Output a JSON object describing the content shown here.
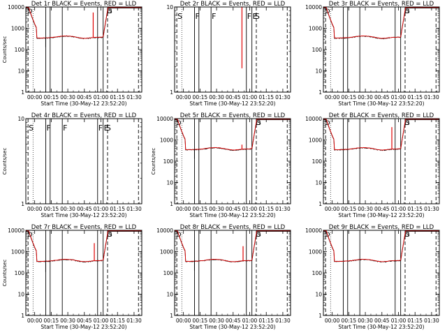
{
  "chart_data": [
    {
      "type": "line",
      "id": "det1",
      "title": "Det 1r  BLACK = Events, RED = LLD",
      "ylabel": "Counts/sec",
      "xlabel": "Start Time (30-May-12 23:52:20)",
      "yscale": "log",
      "ylim": [
        1,
        10000
      ],
      "yticks": [
        "1",
        "10",
        "100",
        "1000",
        "10000"
      ],
      "xlim_min": [
        -8,
        97
      ],
      "xticks": [
        "00:00",
        "00:15",
        "00:30",
        "00:45",
        "01:00",
        "01:15",
        "01:30"
      ],
      "has_data": true,
      "spike_min": 53,
      "spike_red": 5500,
      "dip_min": 10,
      "dip_black": 130,
      "series": [
        {
          "name": "BLACK = Events",
          "color": "#000000"
        },
        {
          "name": "RED = LLD",
          "color": "#e00000"
        }
      ],
      "solid_lines": [
        10,
        14,
        25,
        57,
        62
      ],
      "dashed_lines": [
        -6,
        66,
        94
      ],
      "markers": [
        {
          "label": "D",
          "at": -7
        },
        {
          "label": "D",
          "at": 65
        },
        {
          "label": "S",
          "at": 66
        }
      ]
    },
    {
      "type": "line",
      "id": "det2",
      "title": "Det 2r  BLACK = Events, RED = LLD",
      "ylabel": "",
      "xlabel": "Start Time (30-May-12 23:52:20)",
      "yscale": "log",
      "ylim": [
        1,
        10
      ],
      "yticks": [
        "1",
        "10"
      ],
      "xlim_min": [
        -8,
        97
      ],
      "xticks": [
        "00:00",
        "00:15",
        "00:30",
        "00:45",
        "01:00",
        "01:15",
        "01:30"
      ],
      "has_data": false,
      "spike_min": 53,
      "spike_red": "full",
      "series": [
        {
          "name": "BLACK = Events",
          "color": "#000000"
        },
        {
          "name": "RED = LLD",
          "color": "#e00000"
        }
      ],
      "solid_lines": [
        10,
        14,
        25,
        57,
        62
      ],
      "dashed_lines": [
        -6,
        66,
        94
      ],
      "markers": [
        {
          "label": "S",
          "at": -6
        },
        {
          "label": "F",
          "at": 10
        },
        {
          "label": "F",
          "at": 25
        },
        {
          "label": "F",
          "at": 57
        },
        {
          "label": "E",
          "at": 62
        },
        {
          "label": "S",
          "at": 64
        }
      ]
    },
    {
      "type": "line",
      "id": "det3",
      "title": "Det 3r  BLACK = Events, RED = LLD",
      "ylabel": "",
      "xlabel": "Start Time (30-May-12 23:52:20)",
      "yscale": "log",
      "ylim": [
        1,
        10000
      ],
      "yticks": [
        "1",
        "10",
        "100",
        "1000",
        "10000"
      ],
      "xlim_min": [
        -8,
        97
      ],
      "xticks": [
        "00:00",
        "00:15",
        "00:30",
        "00:45",
        "01:00",
        "01:15",
        "01:30"
      ],
      "has_data": true,
      "series": [
        {
          "name": "BLACK = Events",
          "color": "#000000"
        },
        {
          "name": "RED = LLD",
          "color": "#e00000"
        }
      ],
      "solid_lines": [
        10,
        14,
        25,
        57,
        62
      ],
      "dashed_lines": [
        -6,
        66,
        94
      ],
      "markers": [
        {
          "label": "D",
          "at": -7
        },
        {
          "label": "D",
          "at": 65
        },
        {
          "label": "S",
          "at": 66
        }
      ]
    },
    {
      "type": "line",
      "id": "det4",
      "title": "Det 4r  BLACK = Events, RED = LLD",
      "ylabel": "Counts/sec",
      "xlabel": "Start Time (30-May-12 23:52:20)",
      "yscale": "log",
      "ylim": [
        1,
        10
      ],
      "yticks": [
        "1",
        "10"
      ],
      "xlim_min": [
        -8,
        97
      ],
      "xticks": [
        "00:00",
        "00:15",
        "00:30",
        "00:45",
        "01:00",
        "01:15",
        "01:30"
      ],
      "has_data": false,
      "series": [
        {
          "name": "BLACK = Events",
          "color": "#000000"
        },
        {
          "name": "RED = LLD",
          "color": "#e00000"
        }
      ],
      "solid_lines": [
        10,
        14,
        25,
        57,
        62
      ],
      "dashed_lines": [
        -6,
        66,
        94
      ],
      "markers": [
        {
          "label": "S",
          "at": -6
        },
        {
          "label": "F",
          "at": 10
        },
        {
          "label": "F",
          "at": 25
        },
        {
          "label": "F",
          "at": 57
        },
        {
          "label": "E",
          "at": 62
        },
        {
          "label": "S",
          "at": 64
        }
      ]
    },
    {
      "type": "line",
      "id": "det5",
      "title": "Det 5r  BLACK = Events, RED = LLD",
      "ylabel": "Counts/sec",
      "xlabel": "Start Time (30-May-12 23:52:20)",
      "yscale": "log",
      "ylim": [
        1,
        10000
      ],
      "yticks": [
        "1",
        "10",
        "100",
        "1000",
        "10000"
      ],
      "xlim_min": [
        -8,
        97
      ],
      "xticks": [
        "00:00",
        "00:15",
        "00:30",
        "00:45",
        "01:00",
        "01:15",
        "01:30"
      ],
      "has_data": true,
      "spike_min": 53,
      "spike_red": 600,
      "dip_min": 10,
      "dip_black": 130,
      "series": [
        {
          "name": "BLACK = Events",
          "color": "#000000"
        },
        {
          "name": "RED = LLD",
          "color": "#e00000"
        }
      ],
      "solid_lines": [
        10,
        14,
        25,
        57,
        62
      ],
      "dashed_lines": [
        -6,
        66,
        94
      ],
      "markers": [
        {
          "label": "D",
          "at": -7
        },
        {
          "label": "D",
          "at": 65
        },
        {
          "label": "S",
          "at": 66
        }
      ]
    },
    {
      "type": "line",
      "id": "det6",
      "title": "Det 6r  BLACK = Events, RED = LLD",
      "ylabel": "",
      "xlabel": "Start Time (30-May-12 23:52:20)",
      "yscale": "log",
      "ylim": [
        1,
        10000
      ],
      "yticks": [
        "1",
        "10",
        "100",
        "1000",
        "10000"
      ],
      "xlim_min": [
        -8,
        97
      ],
      "xticks": [
        "00:00",
        "00:15",
        "00:30",
        "00:45",
        "01:00",
        "01:15",
        "01:30"
      ],
      "has_data": true,
      "spike_min": 54,
      "spike_red": 4000,
      "series": [
        {
          "name": "BLACK = Events",
          "color": "#000000"
        },
        {
          "name": "RED = LLD",
          "color": "#e00000"
        }
      ],
      "solid_lines": [
        10,
        14,
        25,
        57,
        62
      ],
      "dashed_lines": [
        -6,
        66,
        94
      ],
      "markers": [
        {
          "label": "D",
          "at": -7
        },
        {
          "label": "D",
          "at": 65
        },
        {
          "label": "S",
          "at": 66
        }
      ]
    },
    {
      "type": "line",
      "id": "det7",
      "title": "Det 7r  BLACK = Events, RED = LLD",
      "ylabel": "Counts/sec",
      "xlabel": "Start Time (30-May-12 23:52:20)",
      "yscale": "log",
      "ylim": [
        1,
        10000
      ],
      "yticks": [
        "1",
        "10",
        "100",
        "1000",
        "10000"
      ],
      "xlim_min": [
        -8,
        97
      ],
      "xticks": [
        "00:00",
        "00:15",
        "00:30",
        "00:45",
        "01:00",
        "01:15",
        "01:30"
      ],
      "has_data": true,
      "spike_min": 54,
      "spike_red": 2500,
      "dip_min": 10,
      "dip_black": 110,
      "series": [
        {
          "name": "BLACK = Events",
          "color": "#000000"
        },
        {
          "name": "RED = LLD",
          "color": "#e00000"
        }
      ],
      "solid_lines": [
        10,
        14,
        25,
        57,
        62
      ],
      "dashed_lines": [
        -6,
        66,
        94
      ],
      "markers": [
        {
          "label": "D",
          "at": -7
        },
        {
          "label": "D",
          "at": 65
        },
        {
          "label": "S",
          "at": 66
        }
      ]
    },
    {
      "type": "line",
      "id": "det8",
      "title": "Det 8r  BLACK = Events, RED = LLD",
      "ylabel": "",
      "xlabel": "Start Time (30-May-12 23:52:20)",
      "yscale": "log",
      "ylim": [
        1,
        10000
      ],
      "yticks": [
        "1",
        "10",
        "100",
        "1000",
        "10000"
      ],
      "xlim_min": [
        -8,
        97
      ],
      "xticks": [
        "00:00",
        "00:15",
        "00:30",
        "00:45",
        "01:00",
        "01:15",
        "01:30"
      ],
      "has_data": true,
      "spike_min": 54,
      "spike_red": 1800,
      "dip_min": 10,
      "dip_black": 130,
      "series": [
        {
          "name": "BLACK = Events",
          "color": "#000000"
        },
        {
          "name": "RED = LLD",
          "color": "#e00000"
        }
      ],
      "solid_lines": [
        10,
        14,
        25,
        57,
        62
      ],
      "dashed_lines": [
        -6,
        66,
        94
      ],
      "markers": [
        {
          "label": "D",
          "at": -7
        },
        {
          "label": "D",
          "at": 65
        },
        {
          "label": "S",
          "at": 66
        }
      ]
    },
    {
      "type": "line",
      "id": "det9",
      "title": "Det 9r  BLACK = Events, RED = LLD",
      "ylabel": "",
      "xlabel": "Start Time (30-May-12 23:52:20)",
      "yscale": "log",
      "ylim": [
        1,
        10000
      ],
      "yticks": [
        "1",
        "10",
        "100",
        "1000",
        "10000"
      ],
      "xlim_min": [
        -8,
        97
      ],
      "xticks": [
        "00:00",
        "00:15",
        "00:30",
        "00:45",
        "01:00",
        "01:15",
        "01:30"
      ],
      "has_data": true,
      "series": [
        {
          "name": "BLACK = Events",
          "color": "#000000"
        },
        {
          "name": "RED = LLD",
          "color": "#e00000"
        }
      ],
      "solid_lines": [
        10,
        14,
        25,
        57,
        62
      ],
      "dashed_lines": [
        -6,
        66,
        94
      ],
      "markers": [
        {
          "label": "D",
          "at": -7
        },
        {
          "label": "D",
          "at": 65
        },
        {
          "label": "S",
          "at": 66
        }
      ]
    }
  ]
}
